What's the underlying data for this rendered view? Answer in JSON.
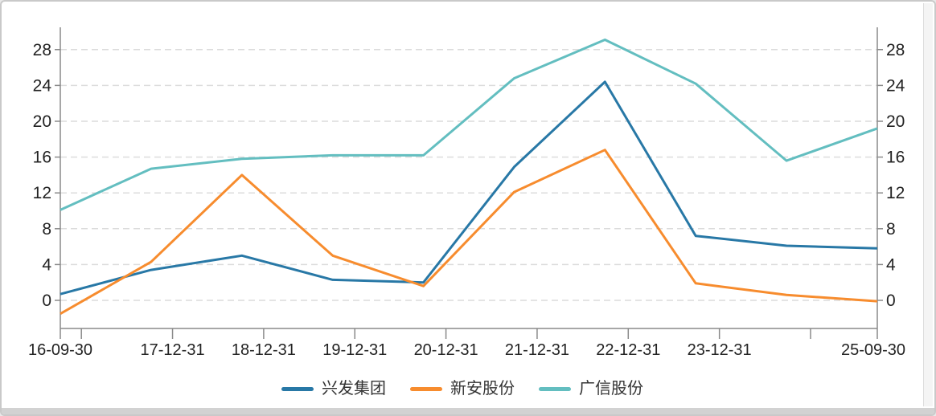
{
  "chart_data": {
    "type": "line",
    "title": "",
    "categories": [
      "16-09-30",
      "17-12-31",
      "18-12-31",
      "19-12-31",
      "20-12-31",
      "21-12-31",
      "22-12-31",
      "23-12-31",
      "",
      "25-09-30"
    ],
    "x_axis_visible_labels": [
      "16-09-30",
      "17-12-31",
      "18-12-31",
      "19-12-31",
      "20-12-31",
      "21-12-31",
      "22-12-31",
      "23-12-31",
      "25-09-30"
    ],
    "series": [
      {
        "name": "兴发集团",
        "color": "#2878a6",
        "values": [
          0.7,
          3.4,
          5.0,
          2.3,
          2.0,
          14.9,
          24.4,
          7.2,
          6.1,
          5.8
        ]
      },
      {
        "name": "新安股份",
        "color": "#f78c2e",
        "values": [
          -1.5,
          4.3,
          14.0,
          5.0,
          1.6,
          12.1,
          16.8,
          1.9,
          0.6,
          -0.1
        ]
      },
      {
        "name": "广信股份",
        "color": "#63bec0",
        "values": [
          10.1,
          14.7,
          15.8,
          16.2,
          16.2,
          24.8,
          29.1,
          24.2,
          15.6,
          19.2
        ]
      }
    ],
    "y_ticks": [
      0,
      4,
      8,
      12,
      16,
      20,
      24,
      28
    ],
    "ylim": [
      -3.2,
      30.5
    ],
    "y_axis_sides": "left and right (mirrored)",
    "grid": "horizontal dashed",
    "legend_position": "bottom-center",
    "colors": {
      "grid_line": "#dcdcdc",
      "axis_line": "#8a8a8a",
      "tick_label": "#222222",
      "background": "#ffffff"
    }
  }
}
